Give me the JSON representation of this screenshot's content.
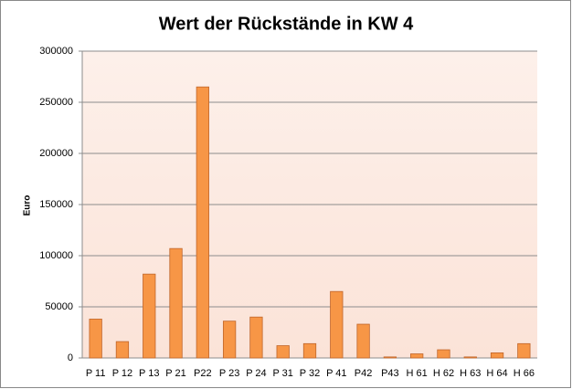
{
  "chart_data": {
    "type": "bar",
    "title": "Wert der Rückstände in KW 4",
    "y_label": "Euro",
    "categories": [
      "P 11",
      "P 12",
      "P 13",
      "P 21",
      "P22",
      "P 23",
      "P 24",
      "P 31",
      "P 32",
      "P 41",
      "P42",
      "P43",
      "H 61",
      "H 62",
      "H 63",
      "H 64",
      "H 66"
    ],
    "values": [
      38000,
      16000,
      82000,
      107000,
      265000,
      36000,
      40000,
      12000,
      14000,
      65000,
      33000,
      1000,
      4000,
      8000,
      1000,
      5000,
      14000
    ],
    "color": "#f79646",
    "ylim": [
      0,
      300000
    ],
    "yticks": [
      0,
      50000,
      100000,
      150000,
      200000,
      250000,
      300000
    ],
    "grid": true
  }
}
